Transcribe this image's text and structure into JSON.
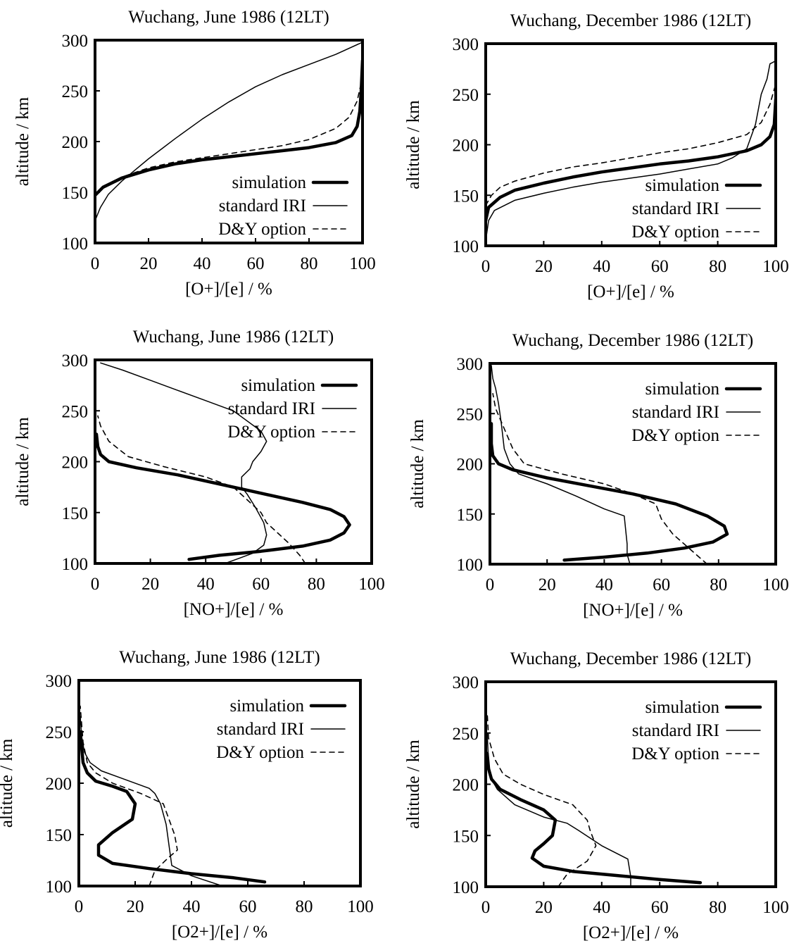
{
  "figure": {
    "line_styles": {
      "simulation": {
        "color": "#000000",
        "stroke": "thick-solid"
      },
      "standard IRI": {
        "color": "#000000",
        "stroke": "thin-solid"
      },
      "D&Y option": {
        "color": "#000000",
        "stroke": "dashed"
      }
    }
  },
  "chart_data": [
    {
      "type": "line",
      "title": "Wuchang, June 1986 (12LT)",
      "xlabel": "[O+]/[e] / %",
      "ylabel": "altitude / km",
      "xlim": [
        0,
        100
      ],
      "ylim": [
        100,
        300
      ],
      "xticks": [
        "0",
        "20",
        "40",
        "60",
        "80",
        "100"
      ],
      "yticks": [
        "100",
        "150",
        "200",
        "250",
        "300"
      ],
      "legend": {
        "position": "bottom-right",
        "entries": [
          "simulation",
          "standard IRI",
          "D&Y option"
        ]
      },
      "series": [
        {
          "name": "simulation",
          "x": [
            0,
            3,
            10,
            20,
            30,
            40,
            50,
            60,
            70,
            80,
            90,
            96,
            98,
            99,
            99.5,
            100
          ],
          "y": [
            147,
            155,
            164,
            172,
            178,
            182,
            185,
            188,
            191,
            194,
            199,
            206,
            215,
            230,
            250,
            280
          ]
        },
        {
          "name": "standard IRI",
          "x": [
            0,
            2,
            5,
            10,
            15,
            20,
            25,
            30,
            40,
            50,
            60,
            70,
            80,
            90,
            100
          ],
          "y": [
            122,
            135,
            148,
            161,
            172,
            183,
            193,
            203,
            222,
            239,
            254,
            266,
            276,
            286,
            298
          ]
        },
        {
          "name": "D&Y option",
          "x": [
            0,
            3,
            10,
            20,
            30,
            40,
            50,
            60,
            70,
            80,
            90,
            95,
            98,
            99,
            100
          ],
          "y": [
            146,
            155,
            165,
            174,
            180,
            184,
            188,
            192,
            196,
            202,
            213,
            224,
            240,
            252,
            262
          ]
        }
      ]
    },
    {
      "type": "line",
      "title": "Wuchang, December 1986 (12LT)",
      "xlabel": "[O+]/[e] / %",
      "ylabel": "altitude / km",
      "xlim": [
        0,
        100
      ],
      "ylim": [
        100,
        300
      ],
      "xticks": [
        "0",
        "20",
        "40",
        "60",
        "80",
        "100"
      ],
      "yticks": [
        "100",
        "150",
        "200",
        "250",
        "300"
      ],
      "legend": {
        "position": "bottom-right",
        "entries": [
          "simulation",
          "standard IRI",
          "D&Y option"
        ]
      },
      "series": [
        {
          "name": "simulation",
          "x": [
            0,
            1,
            5,
            10,
            20,
            30,
            40,
            50,
            60,
            70,
            80,
            90,
            95,
            98,
            99.5,
            100
          ],
          "y": [
            125,
            138,
            148,
            155,
            162,
            168,
            173,
            177,
            181,
            184,
            188,
            194,
            200,
            208,
            220,
            245
          ]
        },
        {
          "name": "standard IRI",
          "x": [
            0,
            1,
            3,
            10,
            20,
            30,
            40,
            50,
            60,
            70,
            80,
            85,
            90,
            93,
            95,
            97,
            98,
            100
          ],
          "y": [
            105,
            125,
            135,
            145,
            152,
            158,
            163,
            167,
            171,
            176,
            181,
            187,
            196,
            220,
            250,
            265,
            280,
            283
          ]
        },
        {
          "name": "D&Y option",
          "x": [
            0,
            2,
            5,
            10,
            20,
            30,
            40,
            50,
            60,
            70,
            80,
            90,
            95,
            98,
            100
          ],
          "y": [
            140,
            150,
            158,
            164,
            172,
            178,
            182,
            187,
            192,
            196,
            202,
            210,
            222,
            240,
            260
          ]
        }
      ]
    },
    {
      "type": "line",
      "title": "Wuchang, June 1986 (12LT)",
      "xlabel": "[NO+]/[e] / %",
      "ylabel": "altitude / km",
      "xlim": [
        0,
        100
      ],
      "ylim": [
        100,
        300
      ],
      "xticks": [
        "0",
        "20",
        "40",
        "60",
        "80",
        "100"
      ],
      "yticks": [
        "100",
        "150",
        "200",
        "250",
        "300"
      ],
      "legend": {
        "position": "top-right",
        "entries": [
          "simulation",
          "standard IRI",
          "D&Y option"
        ]
      },
      "series": [
        {
          "name": "simulation",
          "x": [
            34,
            45,
            60,
            75,
            85,
            90,
            92,
            90,
            85,
            75,
            60,
            45,
            30,
            15,
            5,
            2,
            1,
            0.5
          ],
          "y": [
            104,
            108,
            112,
            117,
            123,
            130,
            138,
            146,
            153,
            160,
            169,
            178,
            187,
            194,
            200,
            207,
            215,
            227
          ]
        },
        {
          "name": "standard IRI",
          "x": [
            47,
            52,
            57,
            61,
            62,
            61,
            58,
            55,
            53,
            53,
            56,
            57,
            60,
            62,
            60,
            50,
            40,
            30,
            20,
            10,
            2
          ],
          "y": [
            100,
            105,
            110,
            118,
            128,
            140,
            155,
            168,
            175,
            185,
            193,
            200,
            210,
            220,
            230,
            250,
            260,
            270,
            280,
            290,
            297
          ]
        },
        {
          "name": "D&Y option",
          "x": [
            76,
            74,
            70,
            66,
            62,
            60,
            56,
            50,
            40,
            25,
            12,
            5,
            2,
            1
          ],
          "y": [
            100,
            108,
            120,
            130,
            140,
            150,
            160,
            175,
            185,
            195,
            205,
            220,
            235,
            245
          ]
        }
      ]
    },
    {
      "type": "line",
      "title": "Wuchang, December 1986 (12LT)",
      "xlabel": "[NO+]/[e] / %",
      "ylabel": "altitude / km",
      "xlim": [
        0,
        100
      ],
      "ylim": [
        100,
        300
      ],
      "xticks": [
        "0",
        "20",
        "40",
        "60",
        "80",
        "100"
      ],
      "yticks": [
        "100",
        "150",
        "200",
        "250",
        "300"
      ],
      "legend": {
        "position": "top-right",
        "entries": [
          "simulation",
          "standard IRI",
          "D&Y option"
        ]
      },
      "series": [
        {
          "name": "simulation",
          "x": [
            26,
            40,
            55,
            68,
            78,
            83,
            82,
            76,
            65,
            50,
            35,
            20,
            8,
            3,
            1,
            0.5,
            0.5
          ],
          "y": [
            104,
            107,
            111,
            116,
            122,
            130,
            138,
            148,
            160,
            170,
            178,
            186,
            194,
            200,
            208,
            220,
            240
          ]
        },
        {
          "name": "standard IRI",
          "x": [
            49,
            48,
            48,
            47,
            40,
            30,
            20,
            10,
            7,
            5,
            4,
            3,
            2,
            1,
            0.5
          ],
          "y": [
            100,
            110,
            120,
            148,
            155,
            168,
            180,
            190,
            200,
            215,
            240,
            260,
            275,
            285,
            298
          ]
        },
        {
          "name": "D&Y option",
          "x": [
            76,
            72,
            68,
            64,
            60,
            58,
            50,
            40,
            25,
            12,
            8,
            5,
            2,
            1
          ],
          "y": [
            100,
            110,
            120,
            130,
            145,
            160,
            170,
            180,
            190,
            200,
            215,
            235,
            255,
            270
          ]
        }
      ]
    },
    {
      "type": "line",
      "title": "Wuchang, June 1986 (12LT)",
      "xlabel": "[O2+]/[e] / %",
      "ylabel": "altitude / km",
      "xlim": [
        0,
        100
      ],
      "ylim": [
        100,
        300
      ],
      "xticks": [
        "0",
        "20",
        "40",
        "60",
        "80",
        "100"
      ],
      "yticks": [
        "100",
        "150",
        "200",
        "250",
        "300"
      ],
      "legend": {
        "position": "top-right",
        "entries": [
          "simulation",
          "standard IRI",
          "D&Y option"
        ]
      },
      "series": [
        {
          "name": "simulation",
          "x": [
            66,
            55,
            40,
            25,
            12,
            7,
            7,
            12,
            19,
            20,
            17,
            12,
            6,
            3,
            1.5,
            1,
            0.5
          ],
          "y": [
            104,
            108,
            112,
            117,
            122,
            130,
            140,
            152,
            165,
            180,
            192,
            197,
            202,
            210,
            220,
            235,
            250
          ]
        },
        {
          "name": "standard IRI",
          "x": [
            51,
            40,
            33,
            32,
            31,
            29,
            27,
            25,
            15,
            8,
            4,
            2,
            1,
            0.5
          ],
          "y": [
            100,
            110,
            120,
            140,
            160,
            180,
            190,
            195,
            205,
            212,
            220,
            230,
            245,
            265
          ]
        },
        {
          "name": "D&Y option",
          "x": [
            25,
            27,
            32,
            35,
            34,
            32,
            30,
            22,
            12,
            6,
            3,
            1.5,
            0.5
          ],
          "y": [
            100,
            115,
            128,
            135,
            150,
            165,
            180,
            190,
            200,
            210,
            220,
            240,
            275
          ]
        }
      ]
    },
    {
      "type": "line",
      "title": "Wuchang, December 1986 (12LT)",
      "xlabel": "[O2+]/[e] / %",
      "ylabel": "altitude / km",
      "xlim": [
        0,
        100
      ],
      "ylim": [
        100,
        300
      ],
      "xticks": [
        "0",
        "20",
        "40",
        "60",
        "80",
        "100"
      ],
      "yticks": [
        "100",
        "150",
        "200",
        "250",
        "300"
      ],
      "legend": {
        "position": "top-right",
        "entries": [
          "simulation",
          "standard IRI",
          "D&Y option"
        ]
      },
      "series": [
        {
          "name": "simulation",
          "x": [
            74,
            60,
            45,
            30,
            20,
            16,
            17,
            20,
            23,
            24,
            20,
            12,
            5,
            2,
            1,
            0.5
          ],
          "y": [
            104,
            107,
            111,
            115,
            120,
            128,
            135,
            142,
            150,
            165,
            175,
            185,
            195,
            205,
            215,
            230
          ]
        },
        {
          "name": "standard IRI",
          "x": [
            50,
            50,
            49,
            40,
            32,
            28,
            20,
            10,
            4,
            2,
            1,
            0.5
          ],
          "y": [
            100,
            110,
            127,
            140,
            155,
            162,
            168,
            180,
            195,
            205,
            220,
            250
          ]
        },
        {
          "name": "D&Y option",
          "x": [
            25,
            28,
            35,
            38,
            36,
            35,
            30,
            20,
            12,
            6,
            3,
            1,
            0.5
          ],
          "y": [
            100,
            112,
            125,
            140,
            155,
            165,
            180,
            190,
            200,
            210,
            225,
            245,
            270
          ]
        }
      ]
    }
  ]
}
